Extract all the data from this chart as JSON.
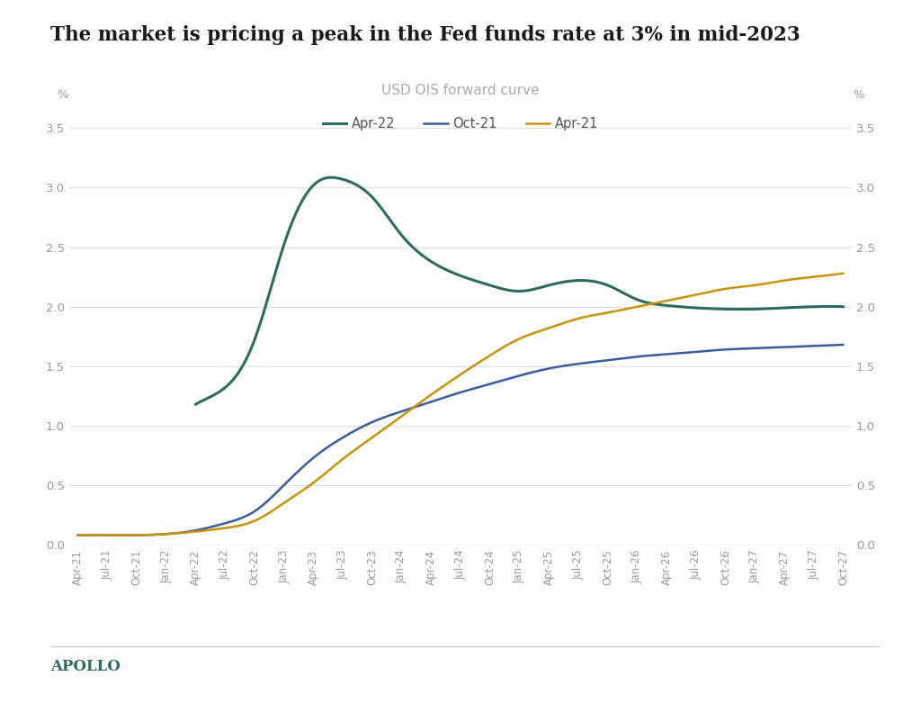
{
  "title": "The market is pricing a peak in the Fed funds rate at 3% in mid-2023",
  "subtitle": "USD OIS forward curve",
  "background_color": "#ffffff",
  "title_color": "#1a1a1a",
  "subtitle_color": "#aaaaaa",
  "apollo_label": "APOLLO",
  "apollo_color": "#2d6b5e",
  "ylim": [
    0.0,
    3.5
  ],
  "yticks": [
    0.0,
    0.5,
    1.0,
    1.5,
    2.0,
    2.5,
    3.0,
    3.5
  ],
  "x_labels": [
    "Apr-21",
    "Jul-21",
    "Oct-21",
    "Jan-22",
    "Apr-22",
    "Jul-22",
    "Oct-22",
    "Jan-23",
    "Apr-23",
    "Jul-23",
    "Oct-23",
    "Jan-24",
    "Apr-24",
    "Jul-24",
    "Oct-24",
    "Jan-25",
    "Apr-25",
    "Jul-25",
    "Oct-25",
    "Jan-26",
    "Apr-26",
    "Jul-26",
    "Oct-26",
    "Jan-27",
    "Apr-27",
    "Jul-27",
    "Oct-27"
  ],
  "series": {
    "Apr-22": {
      "color": "#2d6b5e",
      "linewidth": 2.2,
      "values": [
        null,
        null,
        null,
        null,
        1.18,
        1.32,
        1.72,
        2.52,
        3.02,
        3.07,
        2.92,
        2.6,
        2.38,
        2.26,
        2.18,
        2.13,
        2.18,
        2.22,
        2.18,
        2.06,
        2.01,
        1.99,
        1.98,
        1.98,
        1.99,
        2.0,
        2.0
      ]
    },
    "Oct-21": {
      "color": "#3a5ba0",
      "linewidth": 1.8,
      "values": [
        0.08,
        0.08,
        0.08,
        0.09,
        0.12,
        0.18,
        0.28,
        0.5,
        0.73,
        0.9,
        1.03,
        1.12,
        1.2,
        1.28,
        1.35,
        1.42,
        1.48,
        1.52,
        1.55,
        1.58,
        1.6,
        1.62,
        1.64,
        1.65,
        1.66,
        1.67,
        1.68
      ]
    },
    "Apr-21": {
      "color": "#c8920a",
      "linewidth": 1.8,
      "values": [
        0.08,
        0.08,
        0.08,
        0.09,
        0.11,
        0.14,
        0.2,
        0.35,
        0.52,
        0.72,
        0.9,
        1.08,
        1.26,
        1.43,
        1.59,
        1.73,
        1.82,
        1.9,
        1.95,
        2.0,
        2.05,
        2.1,
        2.15,
        2.18,
        2.22,
        2.25,
        2.28
      ]
    }
  }
}
